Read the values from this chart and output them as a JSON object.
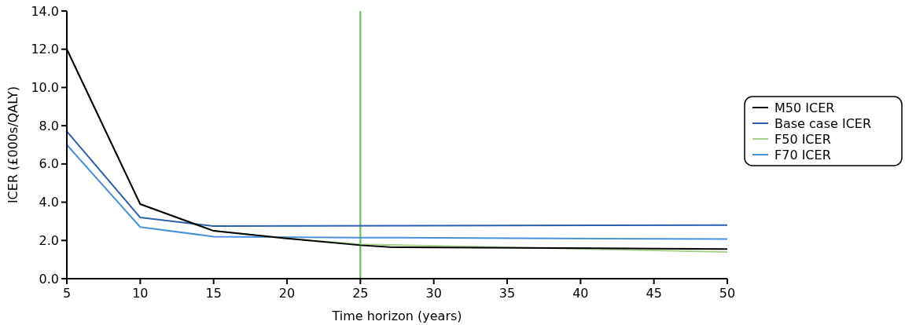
{
  "chart_data": {
    "type": "line",
    "xlabel": "Time horizon (years)",
    "ylabel": "ICER (£000s/QALY)",
    "xlim": [
      5,
      50
    ],
    "xticks": [
      5,
      10,
      15,
      20,
      25,
      30,
      35,
      40,
      45,
      50
    ],
    "ylim": [
      0,
      14
    ],
    "yticks": [
      {
        "value": 0,
        "label": "0.0"
      },
      {
        "value": 2,
        "label": "2.0"
      },
      {
        "value": 4,
        "label": "4.0"
      },
      {
        "value": 6,
        "label": "6.0"
      },
      {
        "value": 8,
        "label": "8.0"
      },
      {
        "value": 10,
        "label": "10.0"
      },
      {
        "value": 12,
        "label": "12.0"
      },
      {
        "value": 14,
        "label": "14.0"
      }
    ],
    "series": [
      {
        "name": "M50 ICER",
        "color": "#000000",
        "x": [
          5,
          10,
          15,
          20,
          25,
          27,
          50
        ],
        "values": [
          12.0,
          3.9,
          2.5,
          2.1,
          1.75,
          1.65,
          1.55
        ]
      },
      {
        "name": "Base case ICER",
        "color": "#2e5fac",
        "x": [
          5,
          10,
          15,
          50
        ],
        "values": [
          7.7,
          3.2,
          2.75,
          2.8
        ]
      },
      {
        "name": "F50 ICER",
        "color": "#a8d08d",
        "x": [
          5,
          10,
          15,
          20,
          25,
          50
        ],
        "values": [
          12.0,
          3.9,
          2.5,
          2.1,
          1.8,
          1.4
        ]
      },
      {
        "name": "F70 ICER",
        "color": "#4a90d9",
        "x": [
          5,
          10,
          15,
          25,
          50
        ],
        "values": [
          7.0,
          2.7,
          2.2,
          2.15,
          2.07
        ]
      }
    ],
    "ref_lines": [
      {
        "axis": "x",
        "value": 25,
        "color": "#5cbf4a"
      }
    ],
    "legend": "right",
    "grid": false,
    "marker": "none",
    "line_style": "solid"
  }
}
